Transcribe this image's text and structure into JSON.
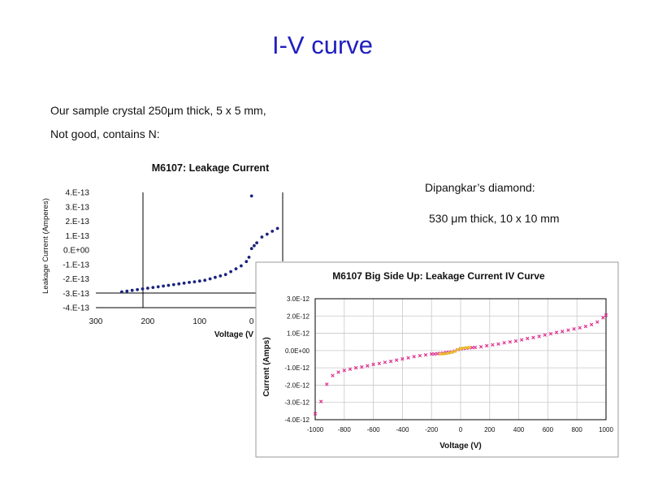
{
  "slide": {
    "title": "I-V curve",
    "line1": "Our sample crystal 250μm thick, 5 x 5 mm,",
    "line2": "Not good, contains N:",
    "right1": "Dipangkar’s diamond:",
    "right2": "530 μm thick, 10 x 10 mm"
  },
  "chart_data": [
    {
      "type": "scatter",
      "title": "M6107: Leakage Current",
      "xlabel": "Voltage (V",
      "ylabel": "Leakage Current (Amperes)",
      "xlim": [
        300,
        -60
      ],
      "ylim": [
        -4e-13,
        4e-13
      ],
      "x_ticks": [
        "300",
        "200",
        "100",
        "0"
      ],
      "y_ticks": [
        "4.E-13",
        "3.E-13",
        "2.E-13",
        "1.E-13",
        "0.E+00",
        "-1.E-13",
        "-2.E-13",
        "-3.E-13",
        "-4.E-13"
      ],
      "color": "#1a237e",
      "series": [
        {
          "x": [
            250,
            240,
            230,
            220,
            210,
            200,
            190,
            180,
            170,
            160,
            150,
            140,
            130,
            120,
            110,
            100,
            90,
            80,
            70,
            60,
            50,
            40,
            30,
            20,
            10,
            5,
            0,
            -5,
            -10,
            -20,
            -30,
            -40,
            -50
          ],
          "y": [
            -2.9e-13,
            -2.85e-13,
            -2.8e-13,
            -2.75e-13,
            -2.7e-13,
            -2.65e-13,
            -2.6e-13,
            -2.55e-13,
            -2.5e-13,
            -2.45e-13,
            -2.4e-13,
            -2.35e-13,
            -2.3e-13,
            -2.25e-13,
            -2.2e-13,
            -2.15e-13,
            -2.1e-13,
            -2e-13,
            -1.9e-13,
            -1.8e-13,
            -1.7e-13,
            -1.5e-13,
            -1.3e-13,
            -1.1e-13,
            -8e-14,
            -5e-14,
            1e-14,
            3e-14,
            5e-14,
            9e-14,
            1.1e-13,
            1.3e-13,
            1.5e-13
          ]
        },
        {
          "x": [
            0
          ],
          "y": [
            3.75e-13
          ]
        }
      ]
    },
    {
      "type": "scatter",
      "title": "M6107 Big Side Up: Leakage Current IV Curve",
      "xlabel": "Voltage (V)",
      "ylabel": "Current (Amps)",
      "xlim": [
        -1000,
        1000
      ],
      "ylim": [
        -4e-12,
        3e-12
      ],
      "grid": true,
      "x_ticks": [
        "-1000",
        "-800",
        "-600",
        "-400",
        "-200",
        "0",
        "200",
        "400",
        "600",
        "800",
        "1000"
      ],
      "y_ticks": [
        "3.0E-12",
        "2.0E-12",
        "1.0E-12",
        "0.0E+00",
        "-1.0E-12",
        "-2.0E-12",
        "-3.0E-12",
        "-4.0E-12"
      ],
      "colors": [
        "#e0308f",
        "#e8c020"
      ],
      "series": [
        {
          "x": [
            -1000,
            -960,
            -920,
            -880,
            -840,
            -800,
            -760,
            -720,
            -680,
            -640,
            -600,
            -560,
            -520,
            -480,
            -440,
            -400,
            -360,
            -320,
            -280,
            -240,
            -200,
            -180,
            -160,
            -140,
            -120,
            -100,
            -80,
            -60,
            -40,
            -20,
            0,
            20,
            40,
            60,
            80,
            100,
            140,
            180,
            220,
            260,
            300,
            340,
            380,
            420,
            460,
            500,
            540,
            580,
            620,
            660,
            700,
            740,
            780,
            820,
            860,
            900,
            940,
            980,
            1000
          ],
          "y": [
            -3.65e-12,
            -2.95e-12,
            -1.95e-12,
            -1.45e-12,
            -1.25e-12,
            -1.15e-12,
            -1.08e-12,
            -1e-12,
            -9.5e-13,
            -8.8e-13,
            -8e-13,
            -7.5e-13,
            -6.8e-13,
            -6.2e-13,
            -5.5e-13,
            -4.8e-13,
            -4.2e-13,
            -3.5e-13,
            -3e-13,
            -2.5e-13,
            -2e-13,
            -2e-13,
            -1.8e-13,
            -1.6e-13,
            -1.5e-13,
            -1.2e-13,
            -1e-13,
            -8e-14,
            -3e-14,
            5e-14,
            1e-13,
            1.2e-13,
            1.4e-13,
            1.6e-13,
            1.7e-13,
            1.8e-13,
            2.2e-13,
            2.8e-13,
            3.3e-13,
            3.8e-13,
            4.5e-13,
            5e-13,
            5.5e-13,
            6.2e-13,
            7e-13,
            7.5e-13,
            8.2e-13,
            9e-13,
            9.7e-13,
            1.05e-12,
            1.1e-12,
            1.18e-12,
            1.25e-12,
            1.32e-12,
            1.4e-12,
            1.5e-12,
            1.65e-12,
            1.9e-12,
            2.05e-12
          ]
        },
        {
          "x": [
            -140,
            -120,
            -100,
            -80,
            -60,
            -40,
            -20,
            0,
            20,
            40,
            60
          ],
          "y": [
            -2e-13,
            -2e-13,
            -1.8e-13,
            -1.5e-13,
            -1e-13,
            -5e-14,
            5e-14,
            1.2e-13,
            1.5e-13,
            1.7e-13,
            1.8e-13
          ]
        }
      ]
    }
  ]
}
